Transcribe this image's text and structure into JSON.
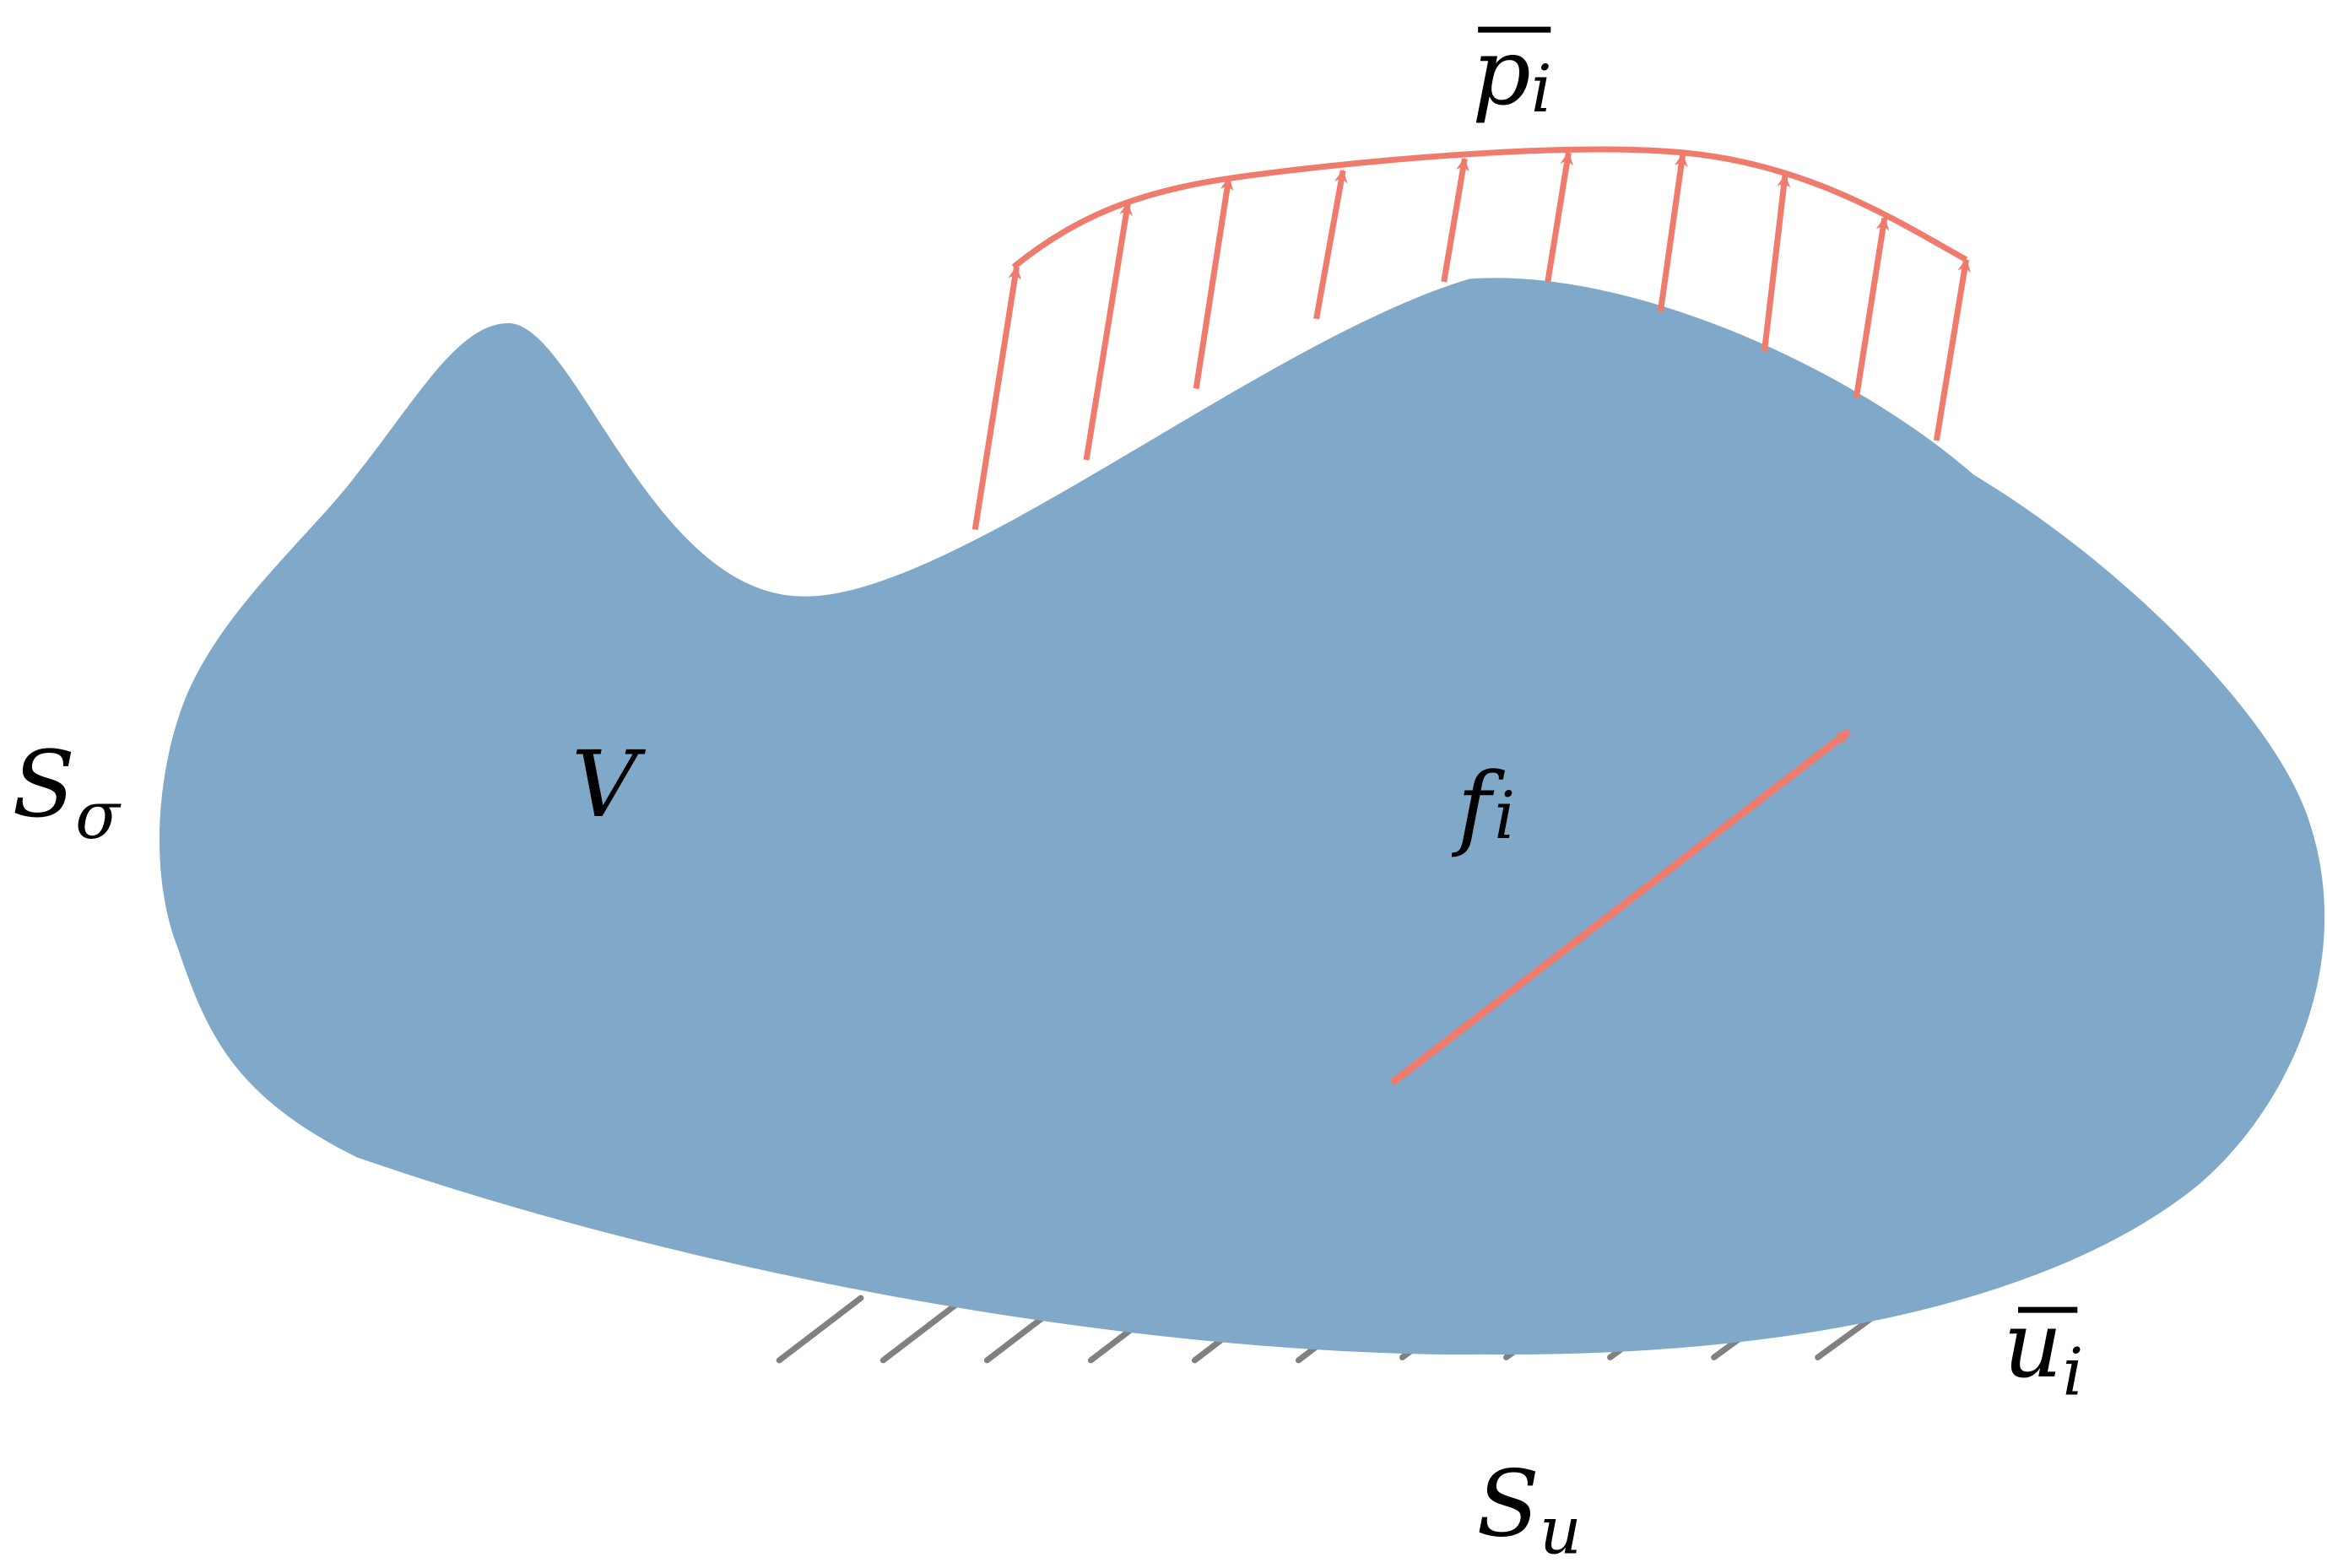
{
  "labels": {
    "s_sigma": {
      "main": "S",
      "sub": "σ"
    },
    "volume": "V",
    "body_force": {
      "main": "f",
      "sub": "i"
    },
    "traction": {
      "main": "p",
      "sub": "i"
    },
    "displacement": {
      "main": "u",
      "sub": "i"
    },
    "s_u": {
      "main": "S",
      "sub": "u"
    }
  }
}
